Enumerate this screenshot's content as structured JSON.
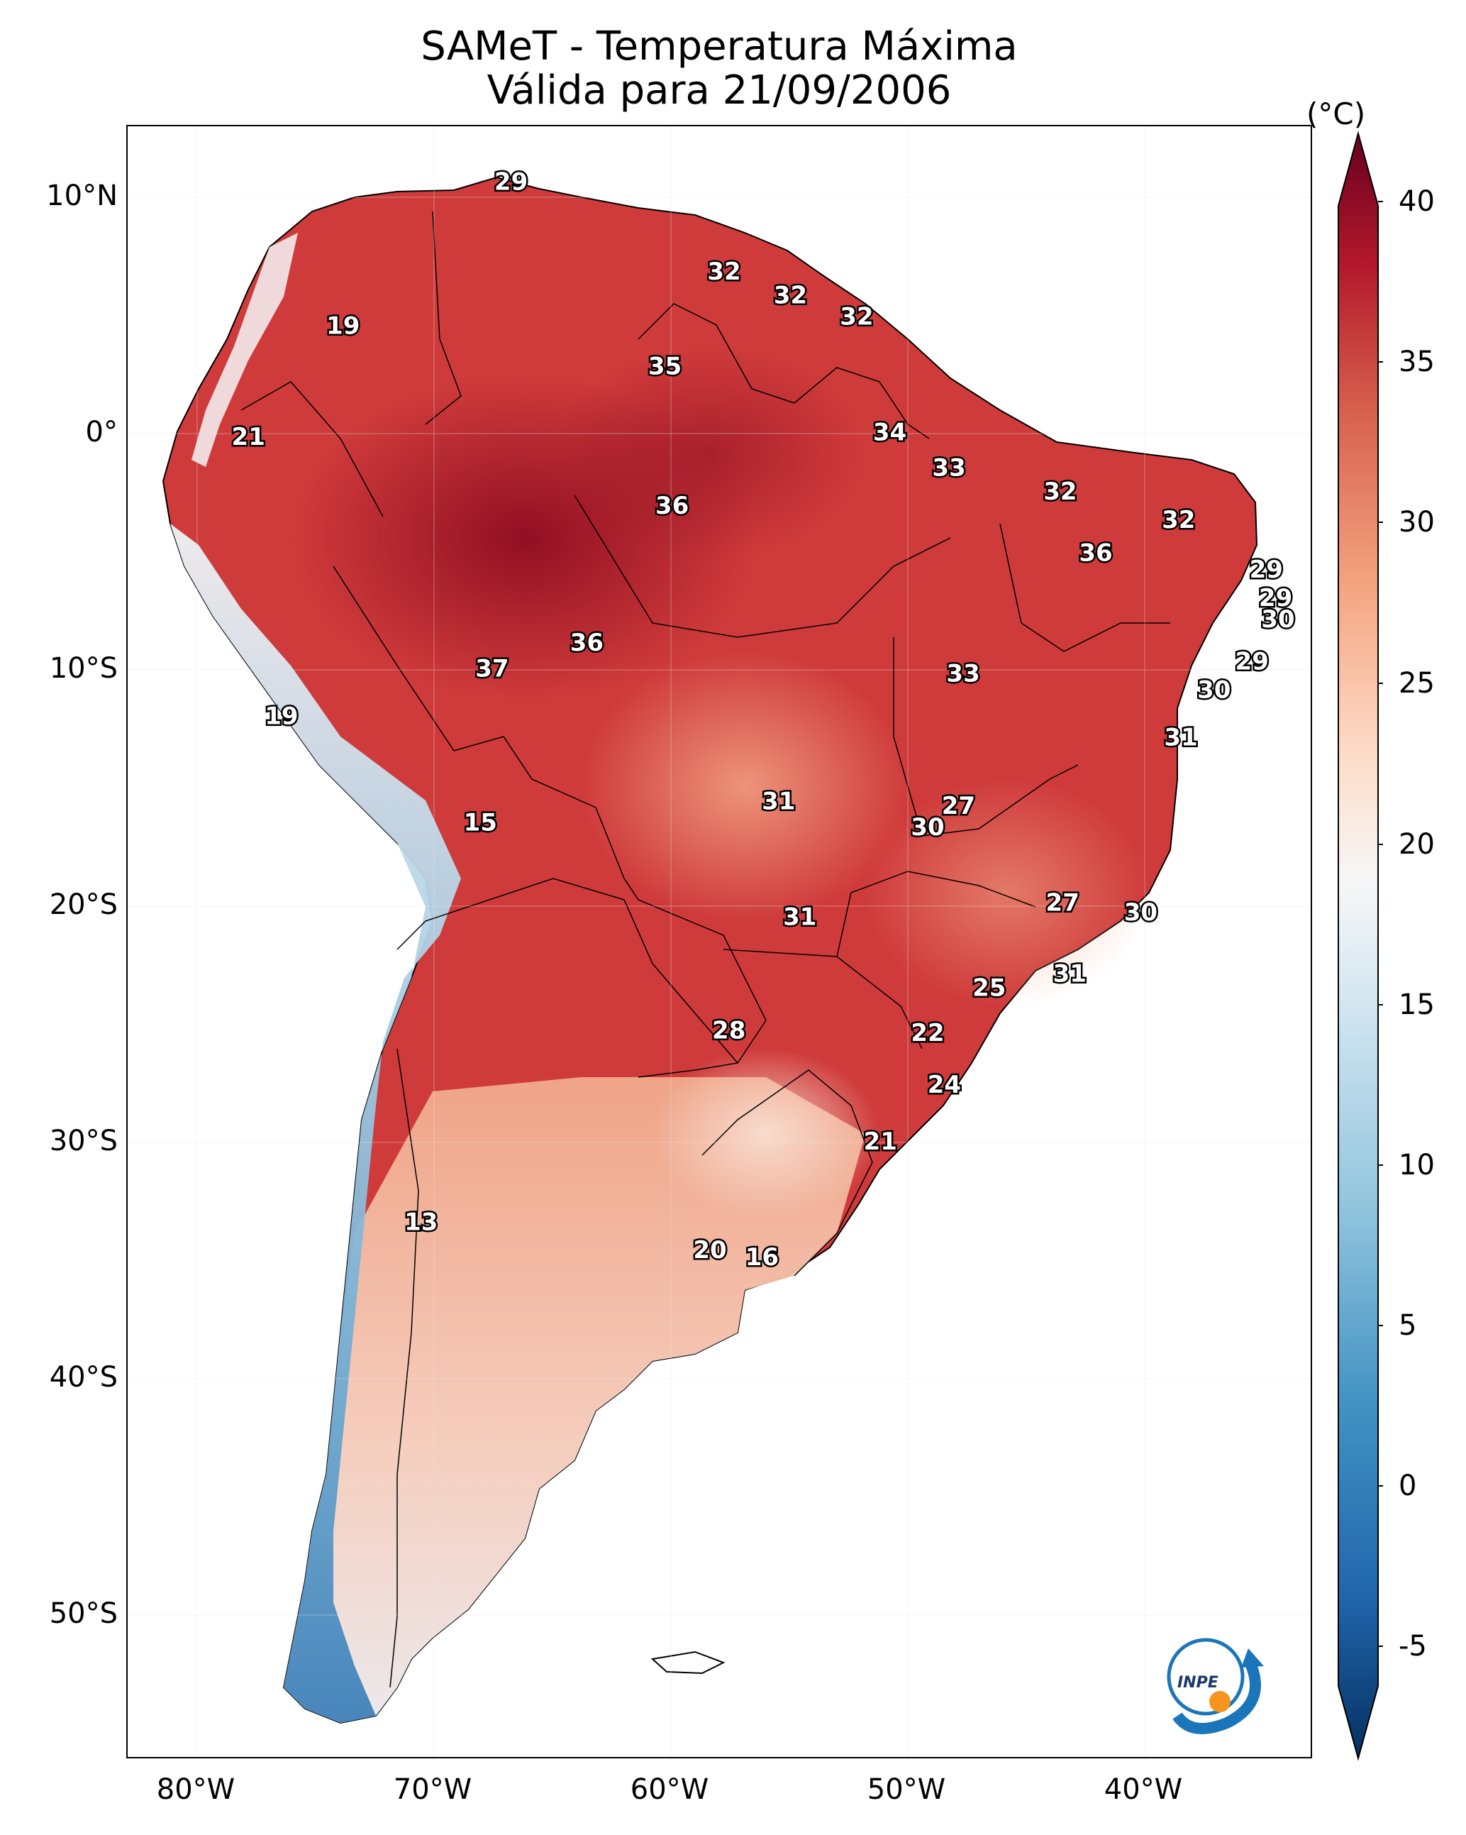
{
  "title": {
    "line1": "SAMeT - Temperatura Máxima",
    "line2": "Válida para 21/09/2006"
  },
  "axes": {
    "lat_ticks": [
      "10°N",
      "0°",
      "10°S",
      "20°S",
      "30°S",
      "40°S",
      "50°S"
    ],
    "lon_ticks": [
      "80°W",
      "70°W",
      "60°W",
      "50°W",
      "40°W"
    ]
  },
  "colorbar": {
    "unit": "(°C)",
    "ticks": [
      "40",
      "35",
      "30",
      "25",
      "20",
      "15",
      "10",
      "5",
      "0",
      "-5"
    ],
    "colors": [
      "#053061",
      "#2166ac",
      "#4393c3",
      "#92c5de",
      "#d1e5f0",
      "#f7f7f7",
      "#fddbc7",
      "#f4a582",
      "#d6604d",
      "#b2182b",
      "#67001f"
    ]
  },
  "station_labels": [
    {
      "value": "29",
      "lon": -66.8,
      "lat": 10.6
    },
    {
      "value": "19",
      "lon": -73.9,
      "lat": 4.5
    },
    {
      "value": "32",
      "lon": -57.8,
      "lat": 6.8
    },
    {
      "value": "32",
      "lon": -55.0,
      "lat": 5.8
    },
    {
      "value": "32",
      "lon": -52.2,
      "lat": 4.9
    },
    {
      "value": "35",
      "lon": -60.3,
      "lat": 2.8
    },
    {
      "value": "21",
      "lon": -77.9,
      "lat": -0.2
    },
    {
      "value": "34",
      "lon": -50.8,
      "lat": 0.0
    },
    {
      "value": "33",
      "lon": -48.3,
      "lat": -1.5
    },
    {
      "value": "36",
      "lon": -60.0,
      "lat": -3.1
    },
    {
      "value": "32",
      "lon": -43.6,
      "lat": -2.5
    },
    {
      "value": "32",
      "lon": -38.6,
      "lat": -3.7
    },
    {
      "value": "36",
      "lon": -42.1,
      "lat": -5.1
    },
    {
      "value": "29",
      "lon": -34.9,
      "lat": -5.8
    },
    {
      "value": "29",
      "lon": -34.5,
      "lat": -7.0
    },
    {
      "value": "30",
      "lon": -34.4,
      "lat": -7.9
    },
    {
      "value": "36",
      "lon": -63.6,
      "lat": -8.9
    },
    {
      "value": "37",
      "lon": -67.6,
      "lat": -10.0
    },
    {
      "value": "29",
      "lon": -35.5,
      "lat": -9.7
    },
    {
      "value": "33",
      "lon": -47.7,
      "lat": -10.2
    },
    {
      "value": "30",
      "lon": -37.1,
      "lat": -10.9
    },
    {
      "value": "19",
      "lon": -76.5,
      "lat": -12.0
    },
    {
      "value": "31",
      "lon": -38.5,
      "lat": -12.9
    },
    {
      "value": "31",
      "lon": -55.5,
      "lat": -15.6
    },
    {
      "value": "27",
      "lon": -47.9,
      "lat": -15.8
    },
    {
      "value": "15",
      "lon": -68.1,
      "lat": -16.5
    },
    {
      "value": "30",
      "lon": -49.2,
      "lat": -16.7
    },
    {
      "value": "27",
      "lon": -43.5,
      "lat": -19.9
    },
    {
      "value": "31",
      "lon": -54.6,
      "lat": -20.5
    },
    {
      "value": "30",
      "lon": -40.2,
      "lat": -20.3
    },
    {
      "value": "31",
      "lon": -43.2,
      "lat": -22.9
    },
    {
      "value": "25",
      "lon": -46.6,
      "lat": -23.5
    },
    {
      "value": "22",
      "lon": -49.2,
      "lat": -25.4
    },
    {
      "value": "28",
      "lon": -57.6,
      "lat": -25.3
    },
    {
      "value": "24",
      "lon": -48.5,
      "lat": -27.6
    },
    {
      "value": "21",
      "lon": -51.2,
      "lat": -30.0
    },
    {
      "value": "13",
      "lon": -70.6,
      "lat": -33.4
    },
    {
      "value": "20",
      "lon": -58.4,
      "lat": -34.6
    },
    {
      "value": "16",
      "lon": -56.2,
      "lat": -34.9
    }
  ],
  "logo": {
    "text": "INPE"
  }
}
